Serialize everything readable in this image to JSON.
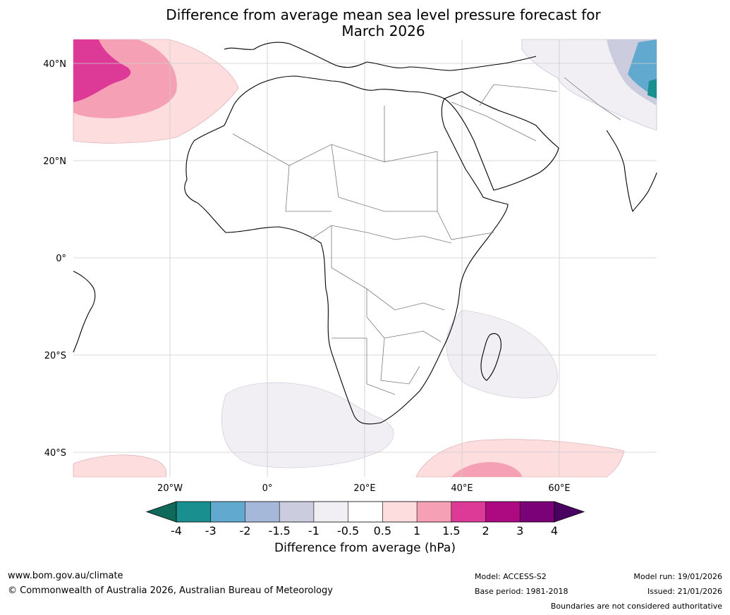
{
  "title": {
    "line1": "Difference from average mean sea level pressure forecast for",
    "line2": "March 2026"
  },
  "axes": {
    "lat_labels": [
      "40°N",
      "20°N",
      "0°",
      "20°S",
      "40°S"
    ],
    "lon_labels": [
      "20°W",
      "0°",
      "20°E",
      "40°E",
      "60°E"
    ]
  },
  "colorbar": {
    "ticks": [
      "-4",
      "-3",
      "-2",
      "-1.5",
      "-1",
      "-0.5",
      "0.5",
      "1",
      "1.5",
      "2",
      "3",
      "4"
    ],
    "colors": [
      "#1a8f8f",
      "#62a9cf",
      "#a6b8d9",
      "#ccccdf",
      "#f1eef4",
      "#ffffff",
      "#fdddde",
      "#f5a0b5",
      "#dd3a98",
      "#ad0a81",
      "#7a0177"
    ],
    "under_color": "#0f6a5c",
    "over_color": "#4a0262",
    "label": "Difference from average (hPa)"
  },
  "footer": {
    "website": "www.bom.gov.au/climate",
    "copyright": "© Commonwealth of Australia 2026, Australian Bureau of Meteorology",
    "model": "Model: ACCESS-S2",
    "base_period": "Base period: 1981-2018",
    "model_run": "Model run: 19/01/2026",
    "issued": "Issued: 21/01/2026",
    "disclaimer": "Boundaries are not considered authoritative"
  }
}
